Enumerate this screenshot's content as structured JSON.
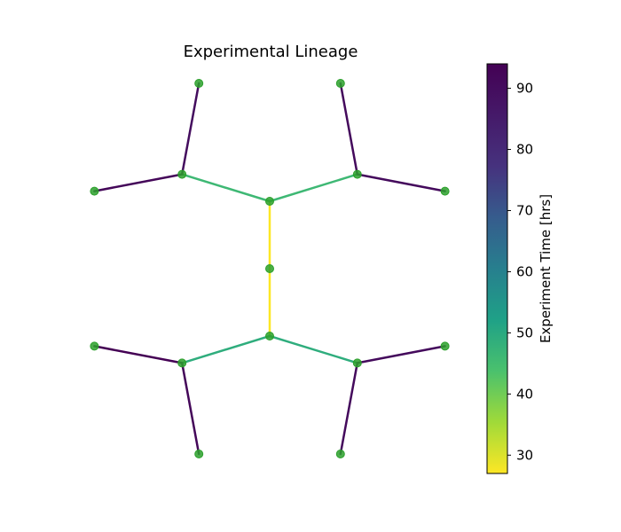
{
  "chart_data": {
    "type": "network",
    "title": "Experimental Lineage",
    "colorbar": {
      "label": "Experiment Time [hrs]",
      "range": [
        27,
        94
      ],
      "ticks": [
        30,
        40,
        50,
        60,
        70,
        80,
        90
      ],
      "colormap": "viridis-reversed"
    },
    "node_color": "#2ca02c",
    "nodes": [
      {
        "id": "root",
        "x": 0.0,
        "y": 0.0
      },
      {
        "id": "A",
        "x": 0.0,
        "y": 1.0
      },
      {
        "id": "B",
        "x": 0.0,
        "y": -1.0
      },
      {
        "id": "A1",
        "x": -1.3,
        "y": 1.4
      },
      {
        "id": "A2",
        "x": 1.3,
        "y": 1.4
      },
      {
        "id": "B1",
        "x": -1.3,
        "y": -1.4
      },
      {
        "id": "B2",
        "x": 1.3,
        "y": -1.4
      },
      {
        "id": "A1a",
        "x": -2.6,
        "y": 1.15
      },
      {
        "id": "A1b",
        "x": -1.05,
        "y": 2.75
      },
      {
        "id": "A2a",
        "x": 2.6,
        "y": 1.15
      },
      {
        "id": "A2b",
        "x": 1.05,
        "y": 2.75
      },
      {
        "id": "B1a",
        "x": -2.6,
        "y": -1.15
      },
      {
        "id": "B1b",
        "x": -1.05,
        "y": -2.75
      },
      {
        "id": "B2a",
        "x": 2.6,
        "y": -1.15
      },
      {
        "id": "B2b",
        "x": 1.05,
        "y": -2.75
      }
    ],
    "edges": [
      {
        "from": "root",
        "to": "A",
        "time": 27
      },
      {
        "from": "root",
        "to": "B",
        "time": 27
      },
      {
        "from": "A",
        "to": "A1",
        "time": 46
      },
      {
        "from": "A",
        "to": "A2",
        "time": 46
      },
      {
        "from": "B",
        "to": "B1",
        "time": 49
      },
      {
        "from": "B",
        "to": "B2",
        "time": 49
      },
      {
        "from": "A1",
        "to": "A1a",
        "time": 92
      },
      {
        "from": "A1",
        "to": "A1b",
        "time": 90
      },
      {
        "from": "A2",
        "to": "A2a",
        "time": 91
      },
      {
        "from": "A2",
        "to": "A2b",
        "time": 91
      },
      {
        "from": "B1",
        "to": "B1a",
        "time": 94
      },
      {
        "from": "B1",
        "to": "B1b",
        "time": 92
      },
      {
        "from": "B2",
        "to": "B2a",
        "time": 91
      },
      {
        "from": "B2",
        "to": "B2b",
        "time": 91
      }
    ]
  }
}
